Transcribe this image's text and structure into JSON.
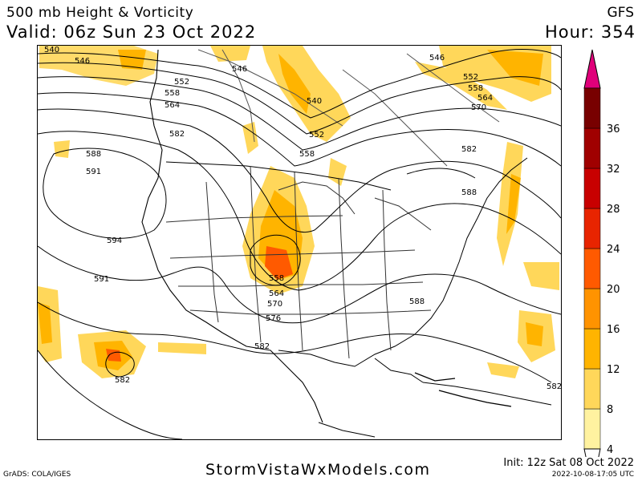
{
  "header": {
    "title": "500 mb Height & Vorticity",
    "valid": "Valid: 06z Sun 23 Oct 2022",
    "model": "GFS",
    "hour": "Hour: 354"
  },
  "footer": {
    "site": "StormVistaWxModels.com",
    "grads": "GrADS: COLA/IGES",
    "init": "Init: 12z Sat 08 Oct 2022",
    "stamp": "2022-10-08-17:05 UTC"
  },
  "colorbar": {
    "labels": [
      "4",
      "8",
      "12",
      "16",
      "20",
      "24",
      "28",
      "32",
      "36"
    ],
    "colors": [
      "#fff2a0",
      "#ffd75a",
      "#ffb400",
      "#ff9300",
      "#ff5a00",
      "#e82400",
      "#c80000",
      "#a00000",
      "#780000"
    ],
    "top_color": "#e0007a"
  },
  "contour_labels": [
    "540",
    "546",
    "552",
    "558",
    "564",
    "570",
    "576",
    "582",
    "588",
    "591",
    "594"
  ]
}
